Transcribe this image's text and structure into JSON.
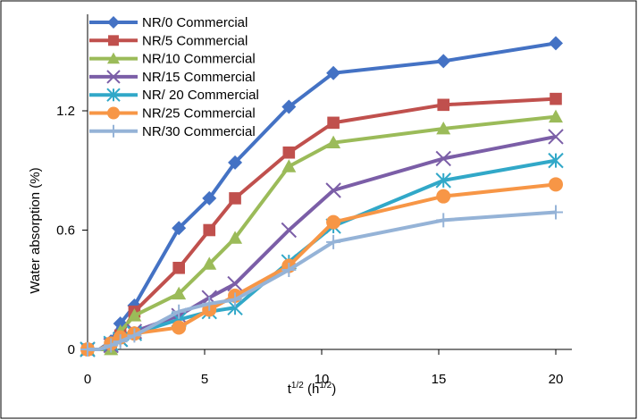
{
  "chart_data": {
    "type": "line",
    "title": "",
    "xlabel_base": "t",
    "xlabel_sup1": "1/2",
    "xlabel_mid": " (h",
    "xlabel_sup2": "1/2",
    "xlabel_end": ")",
    "ylabel": "Water absorption (%)",
    "xlim": [
      0,
      20
    ],
    "ylim": [
      0,
      1.2
    ],
    "x_ticks": [
      0,
      5,
      10,
      15,
      20
    ],
    "y_ticks": [
      0,
      0.6,
      1.2
    ],
    "x_tick_labels": [
      "0",
      "5",
      "10",
      "15",
      "20"
    ],
    "y_tick_labels": [
      "0",
      "0.6",
      "1.2"
    ],
    "grid": false,
    "legend_position": "top-left",
    "series": [
      {
        "name": "NR/0 Commercial",
        "color": "#4472C4",
        "marker": "diamond",
        "x": [
          0,
          0.5,
          1,
          1.4,
          2,
          3.9,
          5.2,
          6.3,
          8.6,
          10.5,
          15.2,
          20
        ],
        "y": [
          0,
          0,
          0.04,
          0.13,
          0.22,
          0.61,
          0.76,
          0.94,
          1.22,
          1.39,
          1.45,
          1.54
        ]
      },
      {
        "name": "NR/5 Commercial",
        "color": "#C0504D",
        "marker": "square",
        "x": [
          0,
          0.5,
          1,
          1.4,
          2,
          3.9,
          5.2,
          6.3,
          8.6,
          10.5,
          15.2,
          20
        ],
        "y": [
          0,
          0,
          0.03,
          0.07,
          0.19,
          0.41,
          0.6,
          0.76,
          0.99,
          1.14,
          1.23,
          1.26
        ]
      },
      {
        "name": "NR/10 Commercial",
        "color": "#9BBB59",
        "marker": "triangle",
        "x": [
          0,
          0.5,
          1,
          1.4,
          2,
          3.9,
          5.2,
          6.3,
          8.6,
          10.5,
          15.2,
          20
        ],
        "y": [
          0,
          0,
          0,
          0.09,
          0.17,
          0.28,
          0.43,
          0.56,
          0.92,
          1.04,
          1.11,
          1.17
        ]
      },
      {
        "name": "NR/15 Commercial",
        "color": "#7B5EA7",
        "marker": "x",
        "x": [
          0,
          0.5,
          1,
          1.4,
          2,
          3.9,
          5.2,
          6.3,
          8.6,
          10.5,
          15.2,
          20
        ],
        "y": [
          0,
          0,
          0.02,
          0.05,
          0.09,
          0.17,
          0.26,
          0.33,
          0.6,
          0.8,
          0.96,
          1.07
        ]
      },
      {
        "name": "NR/ 20 Commercial",
        "color": "#31A8C8",
        "marker": "asterisk",
        "x": [
          0,
          0.5,
          1,
          1.4,
          2,
          3.9,
          5.2,
          6.3,
          8.6,
          10.5,
          15.2,
          20
        ],
        "y": [
          0,
          0,
          0.03,
          0.05,
          0.08,
          0.15,
          0.19,
          0.21,
          0.44,
          0.62,
          0.85,
          0.95
        ]
      },
      {
        "name": "NR/25 Commercial",
        "color": "#F79646",
        "marker": "circle",
        "x": [
          0,
          0.5,
          1,
          1.4,
          2,
          3.9,
          5.2,
          6.3,
          8.6,
          10.5,
          15.2,
          20
        ],
        "y": [
          0,
          0,
          0.03,
          0.06,
          0.08,
          0.11,
          0.2,
          0.27,
          0.42,
          0.64,
          0.77,
          0.83
        ]
      },
      {
        "name": "NR/30 Commercial",
        "color": "#95B3D7",
        "marker": "plus",
        "x": [
          0,
          0.5,
          1,
          1.4,
          2,
          3.9,
          5.2,
          6.3,
          8.6,
          10.5,
          15.2,
          20
        ],
        "y": [
          0,
          0,
          0.02,
          0.04,
          0.07,
          0.19,
          0.23,
          0.25,
          0.4,
          0.54,
          0.65,
          0.69
        ]
      }
    ]
  }
}
